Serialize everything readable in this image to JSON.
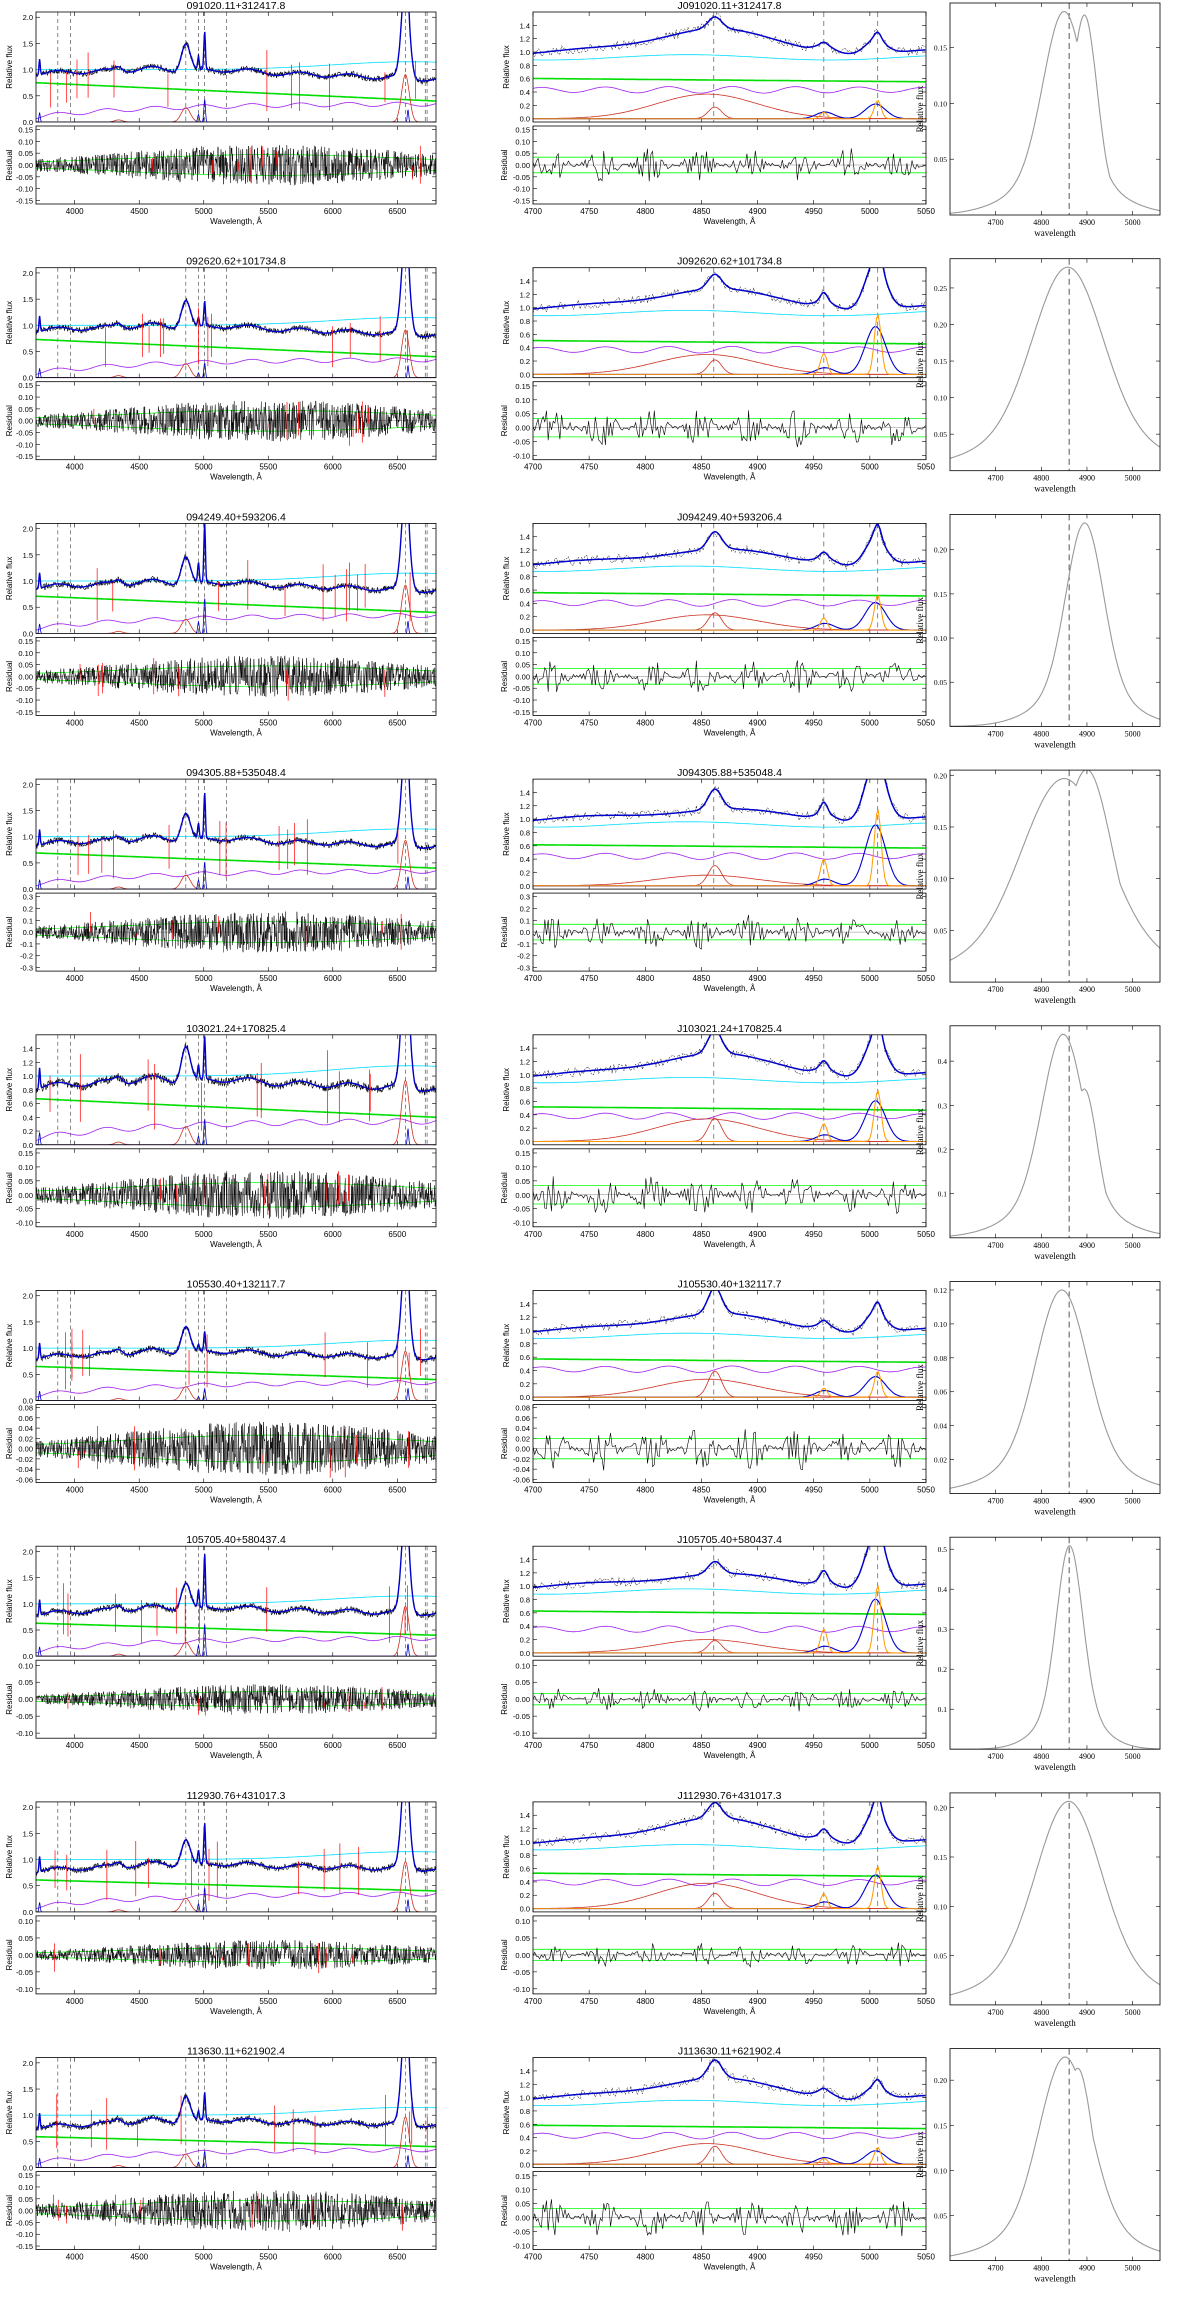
{
  "figure": {
    "common": {
      "full_xticks": [
        4000,
        4500,
        5000,
        5500,
        6000,
        6500
      ],
      "zoom_xticks": [
        4700,
        4750,
        4800,
        4850,
        4900,
        4950,
        5000,
        5050
      ],
      "profile_xticks": [
        4700,
        4800,
        4900,
        5000
      ],
      "full_xlim": [
        3700,
        6800
      ],
      "zoom_xlim": [
        4700,
        5050
      ],
      "profile_xlim": [
        4600,
        5060
      ],
      "xlabel": "Wavelength, Å",
      "ylabel_flux": "Relative flux",
      "ylabel_resid": "Residual",
      "profile_xlabel": "wavelength",
      "profile_ylabel": "Relative flux"
    },
    "colors": {
      "data": "#000000",
      "model": "#0000cc",
      "continuum": "#00dd00",
      "host": "#a020f0",
      "broad": "#cc3322",
      "narrow": "#ff9900",
      "feii": "#00ddff",
      "resid_band": "#00ff00",
      "masked": "#ff0000",
      "profile": "#999999"
    },
    "rows": [
      {
        "name": "091020.11+312417.8",
        "zoom_title": "J091020.11+312417.8",
        "flux_ylim": [
          0,
          2.1
        ],
        "flux_yticks": [
          0,
          0.5,
          1.0,
          1.5,
          2.0
        ],
        "resid_yticks": [
          -0.15,
          -0.1,
          -0.05,
          0.0,
          0.05,
          0.1,
          0.15
        ],
        "zoom_yticks": [
          0,
          0.2,
          0.4,
          0.6,
          0.8,
          1.0,
          1.2,
          1.4
        ],
        "zoom_resid_yticks": [
          -0.15,
          -0.1,
          -0.05,
          0.0,
          0.05,
          0.1,
          0.15
        ],
        "profile_yticks": [
          0.05,
          0.1,
          0.15
        ],
        "profile_ymax": 0.19,
        "profile_peak": 4850,
        "profile_width": 45,
        "profile_second": 4895,
        "profile_second_amp": 0.85
      },
      {
        "name": "092620.62+101734.8",
        "zoom_title": "J092620.62+101734.8",
        "flux_ylim": [
          0,
          2.1
        ],
        "flux_yticks": [
          0,
          0.5,
          1.0,
          1.5,
          2.0
        ],
        "resid_yticks": [
          -0.15,
          -0.1,
          -0.05,
          0.0,
          0.05,
          0.1,
          0.15
        ],
        "zoom_yticks": [
          0,
          0.2,
          0.4,
          0.6,
          0.8,
          1.0,
          1.2,
          1.4
        ],
        "zoom_resid_yticks": [
          -0.1,
          -0.05,
          0.0,
          0.05,
          0.1,
          0.15
        ],
        "profile_yticks": [
          0.05,
          0.1,
          0.15,
          0.2,
          0.25
        ],
        "profile_ymax": 0.29,
        "profile_peak": 4858,
        "profile_width": 75,
        "profile_second": 0,
        "profile_second_amp": 0
      },
      {
        "name": "094249.40+593206.4",
        "zoom_title": "J094249.40+593206.4",
        "flux_ylim": [
          0,
          2.1
        ],
        "flux_yticks": [
          0,
          0.5,
          1.0,
          1.5,
          2.0
        ],
        "resid_yticks": [
          -0.15,
          -0.1,
          -0.05,
          0.0,
          0.05,
          0.1,
          0.15
        ],
        "zoom_yticks": [
          0,
          0.2,
          0.4,
          0.6,
          0.8,
          1.0,
          1.2,
          1.4
        ],
        "zoom_resid_yticks": [
          -0.15,
          -0.1,
          -0.05,
          0.0,
          0.05,
          0.1,
          0.15
        ],
        "profile_yticks": [
          0.05,
          0.1,
          0.15,
          0.2
        ],
        "profile_ymax": 0.24,
        "profile_peak": 4895,
        "profile_width": 40,
        "profile_second": 0,
        "profile_second_amp": 0
      },
      {
        "name": "094305.88+535048.4",
        "zoom_title": "J094305.88+535048.4",
        "flux_ylim": [
          0,
          2.1
        ],
        "flux_yticks": [
          0,
          0.5,
          1.0,
          1.5,
          2.0
        ],
        "resid_yticks": [
          -0.3,
          -0.2,
          -0.1,
          0.0,
          0.1,
          0.2,
          0.3
        ],
        "zoom_yticks": [
          0,
          0.2,
          0.4,
          0.6,
          0.8,
          1.0,
          1.2,
          1.4
        ],
        "zoom_resid_yticks": [
          -0.3,
          -0.2,
          -0.1,
          0.0,
          0.1,
          0.2,
          0.3
        ],
        "profile_yticks": [
          0.05,
          0.1,
          0.15,
          0.2
        ],
        "profile_ymax": 0.205,
        "profile_peak": 4850,
        "profile_width": 90,
        "profile_second": 4900,
        "profile_second_amp": 0.9
      },
      {
        "name": "103021.24+170825.4",
        "zoom_title": "J103021.24+170825.4",
        "flux_ylim": [
          0,
          1.6
        ],
        "flux_yticks": [
          0,
          0.2,
          0.4,
          0.6,
          0.8,
          1.0,
          1.2,
          1.4
        ],
        "resid_yticks": [
          -0.1,
          -0.05,
          0.0,
          0.05,
          0.1,
          0.15
        ],
        "zoom_yticks": [
          0,
          0.2,
          0.4,
          0.6,
          0.8,
          1.0,
          1.2,
          1.4
        ],
        "zoom_resid_yticks": [
          -0.1,
          -0.05,
          0.0,
          0.05,
          0.1,
          0.15
        ],
        "profile_yticks": [
          0.1,
          0.2,
          0.3,
          0.4
        ],
        "profile_ymax": 0.48,
        "profile_peak": 4848,
        "profile_width": 45,
        "profile_second": 4895,
        "profile_second_amp": 0.6
      },
      {
        "name": "105530.40+132117.7",
        "zoom_title": "J105530.40+132117.7",
        "flux_ylim": [
          0,
          2.1
        ],
        "flux_yticks": [
          0,
          0.5,
          1.0,
          1.5,
          2.0
        ],
        "resid_yticks": [
          -0.06,
          -0.04,
          -0.02,
          0.0,
          0.02,
          0.04,
          0.06,
          0.08
        ],
        "zoom_yticks": [
          0,
          0.2,
          0.4,
          0.6,
          0.8,
          1.0,
          1.2,
          1.4
        ],
        "zoom_resid_yticks": [
          -0.06,
          -0.04,
          -0.02,
          0.0,
          0.02,
          0.04,
          0.06,
          0.08
        ],
        "profile_yticks": [
          0.02,
          0.04,
          0.06,
          0.08,
          0.1,
          0.12
        ],
        "profile_ymax": 0.125,
        "profile_peak": 4845,
        "profile_width": 55,
        "profile_second": 0,
        "profile_second_amp": 0
      },
      {
        "name": "105705.40+580437.4",
        "zoom_title": "J105705.40+580437.4",
        "flux_ylim": [
          0,
          2.1
        ],
        "flux_yticks": [
          0,
          0.5,
          1.0,
          1.5,
          2.0
        ],
        "resid_yticks": [
          -0.1,
          -0.05,
          0.0,
          0.05,
          0.1
        ],
        "zoom_yticks": [
          0,
          0.2,
          0.4,
          0.6,
          0.8,
          1.0,
          1.2,
          1.4
        ],
        "zoom_resid_yticks": [
          -0.1,
          -0.05,
          0.0,
          0.05,
          0.1
        ],
        "profile_yticks": [
          0.1,
          0.2,
          0.3,
          0.4,
          0.5
        ],
        "profile_ymax": 0.53,
        "profile_peak": 4862,
        "profile_width": 28,
        "profile_second": 0,
        "profile_second_amp": 0
      },
      {
        "name": "112930.76+431017.3",
        "zoom_title": "J112930.76+431017.3",
        "flux_ylim": [
          0,
          2.1
        ],
        "flux_yticks": [
          0,
          0.5,
          1.0,
          1.5,
          2.0
        ],
        "resid_yticks": [
          -0.1,
          -0.05,
          0.0,
          0.05,
          0.1
        ],
        "zoom_yticks": [
          0,
          0.2,
          0.4,
          0.6,
          0.8,
          1.0,
          1.2,
          1.4
        ],
        "zoom_resid_yticks": [
          -0.1,
          -0.05,
          0.0,
          0.05,
          0.1
        ],
        "profile_yticks": [
          0.05,
          0.1,
          0.15,
          0.2
        ],
        "profile_ymax": 0.215,
        "profile_peak": 4860,
        "profile_width": 70,
        "profile_second": 0,
        "profile_second_amp": 0
      },
      {
        "name": "113630.11+621902.4",
        "zoom_title": "J113630.11+621902.4",
        "flux_ylim": [
          0,
          2.1
        ],
        "flux_yticks": [
          0,
          0.5,
          1.0,
          1.5,
          2.0
        ],
        "resid_yticks": [
          -0.15,
          -0.1,
          -0.05,
          0.0,
          0.05,
          0.1,
          0.15
        ],
        "zoom_yticks": [
          0,
          0.2,
          0.4,
          0.6,
          0.8,
          1.0,
          1.2,
          1.4
        ],
        "zoom_resid_yticks": [
          -0.1,
          -0.05,
          0.0,
          0.05,
          0.1,
          0.15
        ],
        "profile_yticks": [
          0.05,
          0.1,
          0.15,
          0.2
        ],
        "profile_ymax": 0.235,
        "profile_peak": 4852,
        "profile_width": 55,
        "profile_second": 4880,
        "profile_second_amp": 0.8
      }
    ]
  },
  "chart_data": {
    "type": "line",
    "title": "",
    "panels_per_object": [
      "full-spectrum fit with residuals",
      "H-beta/[OIII] zoom fit with residuals",
      "H-beta broad line profile"
    ],
    "series": [
      {
        "name": "",
        "color": "black"
      },
      {
        "name": "",
        "color": "blue"
      },
      {
        "name": "",
        "color": "green"
      },
      {
        "name": "",
        "color": "purple"
      },
      {
        "name": "",
        "color": "red"
      },
      {
        "name": "",
        "color": "orange"
      },
      {
        "name": "",
        "color": "cyan"
      }
    ],
    "objects": [
      "091020.11+312417.8",
      "092620.62+101734.8",
      "094249.40+593206.4",
      "094305.88+535048.4",
      "103021.24+170825.4",
      "105530.40+132117.7",
      "105705.40+580437.4",
      "112930.76+431017.3",
      "113630.11+621902.4"
    ],
    "full_xlim": [
      3700,
      6800
    ],
    "zoom_xlim": [
      4700,
      5050
    ],
    "profile_xlim": [
      4600,
      5060
    ],
    "reference_lines_angstrom": [
      3869,
      3968,
      4861,
      4959,
      5007,
      5176,
      6563,
      6717,
      6731
    ]
  }
}
